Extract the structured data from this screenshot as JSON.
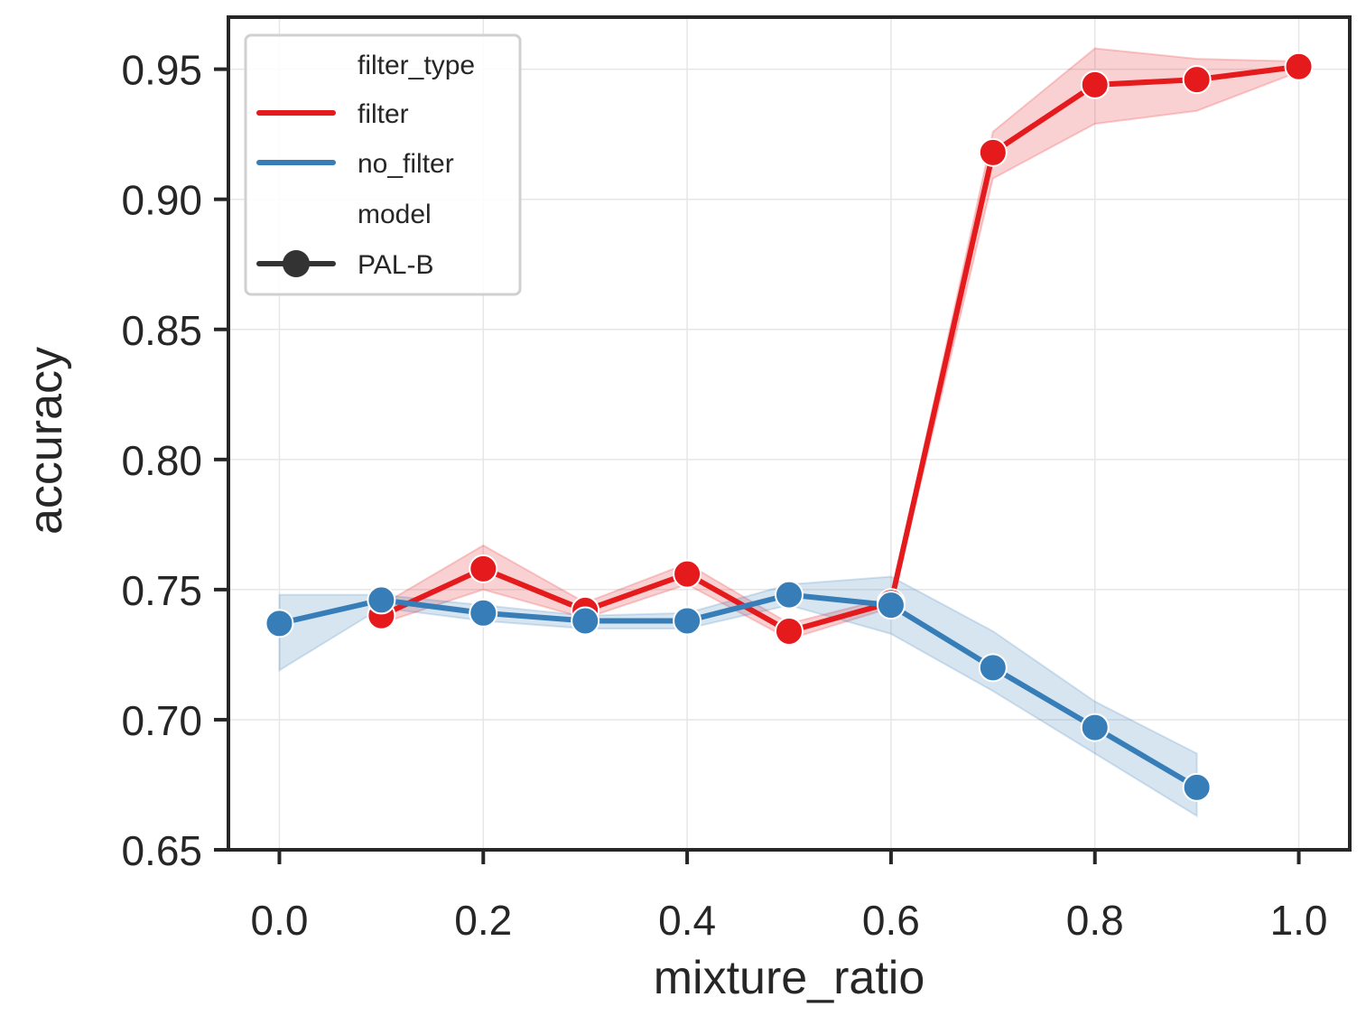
{
  "chart_data": {
    "type": "line",
    "title": "",
    "xlabel": "mixture_ratio",
    "ylabel": "accuracy",
    "xlim": [
      -0.05,
      1.05
    ],
    "ylim": [
      0.65,
      0.97
    ],
    "xticks": [
      0.0,
      0.2,
      0.4,
      0.6,
      0.8,
      1.0
    ],
    "xtick_labels": [
      "0.0",
      "0.2",
      "0.4",
      "0.6",
      "0.8",
      "1.0"
    ],
    "yticks": [
      0.65,
      0.7,
      0.75,
      0.8,
      0.85,
      0.9,
      0.95
    ],
    "ytick_labels": [
      "0.65",
      "0.70",
      "0.75",
      "0.80",
      "0.85",
      "0.90",
      "0.95"
    ],
    "grid": true,
    "legend": {
      "placement": "top-left",
      "hue_title": "filter_type",
      "style_title": "model",
      "model_label": "PAL-B",
      "model_color": "#333333"
    },
    "series": [
      {
        "name": "filter",
        "color": "#e41a1c",
        "x": [
          0.1,
          0.2,
          0.3,
          0.4,
          0.5,
          0.6,
          0.7,
          0.8,
          0.9,
          1.0
        ],
        "values": [
          0.74,
          0.758,
          0.742,
          0.756,
          0.734,
          0.745,
          0.918,
          0.944,
          0.946,
          0.951
        ],
        "ci_low": [
          0.737,
          0.75,
          0.739,
          0.752,
          0.731,
          0.743,
          0.908,
          0.929,
          0.934,
          0.949
        ],
        "ci_high": [
          0.744,
          0.767,
          0.745,
          0.76,
          0.737,
          0.747,
          0.926,
          0.958,
          0.954,
          0.953
        ]
      },
      {
        "name": "no_filter",
        "color": "#377eb8",
        "x": [
          0.0,
          0.1,
          0.2,
          0.3,
          0.4,
          0.5,
          0.6,
          0.7,
          0.8,
          0.9
        ],
        "values": [
          0.737,
          0.746,
          0.741,
          0.738,
          0.738,
          0.748,
          0.744,
          0.72,
          0.697,
          0.674
        ],
        "ci_low": [
          0.719,
          0.743,
          0.738,
          0.735,
          0.735,
          0.744,
          0.733,
          0.711,
          0.687,
          0.663
        ],
        "ci_high": [
          0.748,
          0.748,
          0.744,
          0.74,
          0.741,
          0.752,
          0.755,
          0.734,
          0.707,
          0.687
        ]
      }
    ]
  }
}
